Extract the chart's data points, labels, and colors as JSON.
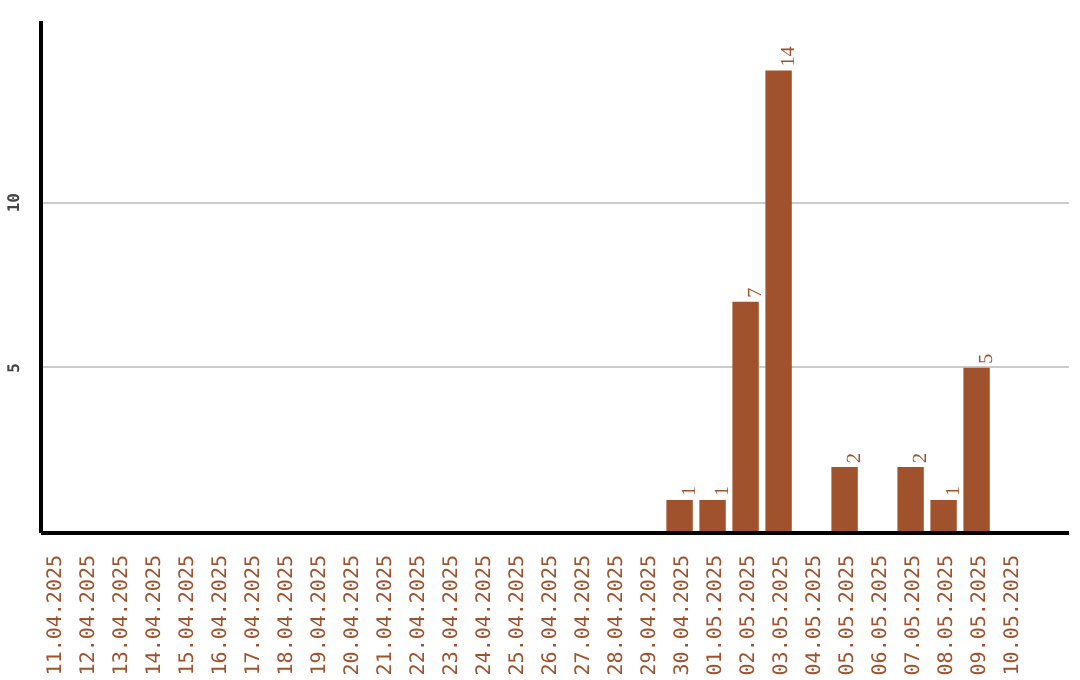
{
  "chart_data": {
    "type": "bar",
    "categories": [
      "11.04.2025",
      "12.04.2025",
      "13.04.2025",
      "14.04.2025",
      "15.04.2025",
      "16.04.2025",
      "17.04.2025",
      "18.04.2025",
      "19.04.2025",
      "20.04.2025",
      "21.04.2025",
      "22.04.2025",
      "23.04.2025",
      "24.04.2025",
      "25.04.2025",
      "26.04.2025",
      "27.04.2025",
      "28.04.2025",
      "29.04.2025",
      "30.04.2025",
      "01.05.2025",
      "02.05.2025",
      "03.05.2025",
      "04.05.2025",
      "05.05.2025",
      "06.05.2025",
      "07.05.2025",
      "08.05.2025",
      "09.05.2025",
      "10.05.2025"
    ],
    "values": [
      0,
      0,
      0,
      0,
      0,
      0,
      0,
      0,
      0,
      0,
      0,
      0,
      0,
      0,
      0,
      0,
      0,
      0,
      0,
      1,
      1,
      7,
      14,
      0,
      2,
      0,
      2,
      1,
      5,
      0
    ],
    "value_labels": [
      null,
      null,
      null,
      null,
      null,
      null,
      null,
      null,
      null,
      null,
      null,
      null,
      null,
      null,
      null,
      null,
      null,
      null,
      null,
      "1",
      "1",
      "7",
      "14",
      null,
      "2",
      null,
      "2",
      "1",
      "5",
      null
    ],
    "color": "#a0522d",
    "ylim": [
      0,
      15.5
    ],
    "yticks": [
      5,
      10
    ],
    "grid": "y"
  }
}
